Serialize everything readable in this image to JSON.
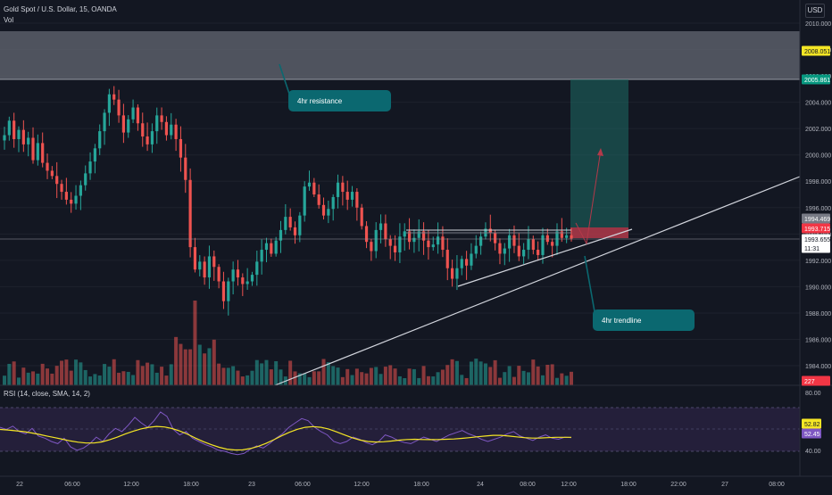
{
  "header": {
    "title": "Gold Spot / U.S. Dollar, 15, OANDA",
    "vol_label": "Vol",
    "rsi_label": "RSI (14, close, SMA, 14, 2)",
    "currency": "USD"
  },
  "annotations": {
    "resistance_label": "4hr resistance",
    "trendline_label": "4hr trendline"
  },
  "price_axis": {
    "ticks": [
      "2010.000",
      "2008.000",
      "2006.000",
      "2004.000",
      "2002.000",
      "2000.000",
      "1998.000",
      "1996.000",
      "1994.000",
      "1992.000",
      "1990.000",
      "1988.000",
      "1986.000",
      "1984.000"
    ],
    "badges": [
      {
        "name": "target-price-badge",
        "text": "2008.051",
        "bg": "#f5e625",
        "fg": "#131722"
      },
      {
        "name": "tp-price-badge",
        "text": "2005.861",
        "bg": "#089981",
        "fg": "#ffffff"
      },
      {
        "name": "entry-price-badge",
        "text": "1994.469",
        "bg": "#787b86",
        "fg": "#ffffff"
      },
      {
        "name": "stop-price-badge",
        "text": "1993.715",
        "bg": "#f23645",
        "fg": "#ffffff"
      },
      {
        "name": "last-price-badge",
        "text": "1993.655",
        "bg": "#ffffff",
        "fg": "#131722"
      },
      {
        "name": "countdown-badge",
        "text": "11:31",
        "bg": "#ffffff",
        "fg": "#131722"
      },
      {
        "name": "volume-badge",
        "text": "227",
        "bg": "#f23645",
        "fg": "#ffffff"
      }
    ]
  },
  "rsi_axis": {
    "ticks": [
      "80.00",
      "40.00"
    ],
    "badges": [
      {
        "name": "rsi-sma-badge",
        "text": "52.82",
        "bg": "#f5e625",
        "fg": "#131722"
      },
      {
        "name": "rsi-value-badge",
        "text": "52.45",
        "bg": "#7e57c2",
        "fg": "#ffffff"
      }
    ]
  },
  "time_axis": {
    "ticks": [
      "22",
      "06:00",
      "12:00",
      "18:00",
      "23",
      "06:00",
      "12:00",
      "18:00",
      "24",
      "08:00",
      "12:00",
      "18:00",
      "22:00",
      "27",
      "08:00"
    ]
  },
  "colors": {
    "background": "#131722",
    "up": "#26a69a",
    "down": "#ef5350",
    "resistance_zone": "#5d606b",
    "target_zone": "#1d6b64",
    "stop_zone": "#b2394a",
    "trendline": "#d1d4dc",
    "callout": "#0b6870",
    "rsi_line": "#7e57c2",
    "rsi_ma": "#f5e625",
    "rsi_band": "#241f3a"
  },
  "chart_data": {
    "type": "candlestick",
    "title": "Gold Spot / U.S. Dollar, 15, OANDA",
    "interval": "15",
    "ylim": [
      1983,
      2011
    ],
    "price_series": [
      2001.5,
      2002.6,
      2001.2,
      2001.9,
      2000.8,
      2001.3,
      1999.6,
      2000.9,
      1999.4,
      1998.8,
      1998.4,
      1997.8,
      1997.2,
      1996.6,
      1996.3,
      1996.9,
      1997.7,
      1998.6,
      1999.5,
      2000.5,
      2001.8,
      2003.2,
      2004.6,
      2004.2,
      2003.0,
      2001.7,
      2002.7,
      2003.6,
      2002.4,
      2001.4,
      2000.8,
      2001.8,
      2003.0,
      2002.5,
      2001.5,
      2002.3,
      2001.2,
      1999.8,
      1998.1,
      1993.0,
      1991.3,
      1991.9,
      1990.7,
      1992.3,
      1991.5,
      1990.4,
      1988.9,
      1990.4,
      1991.3,
      1990.7,
      1990.2,
      1990.4,
      1990.9,
      1991.9,
      1992.8,
      1993.3,
      1992.5,
      1993.5,
      1994.3,
      1995.3,
      1994.5,
      1993.9,
      1995.4,
      1997.6,
      1997.9,
      1997.0,
      1996.2,
      1995.4,
      1995.9,
      1996.8,
      1997.9,
      1997.2,
      1996.6,
      1997.2,
      1996.0,
      1994.6,
      1993.4,
      1992.7,
      1994.3,
      1994.8,
      1993.6,
      1993.1,
      1992.6,
      1993.8,
      1994.2,
      1993.4,
      1993.7,
      1994.2,
      1993.5,
      1993.0,
      1993.2,
      1993.8,
      1992.8,
      1991.4,
      1990.6,
      1991.4,
      1992.1,
      1991.6,
      1992.5,
      1993.1,
      1993.8,
      1994.4,
      1994.1,
      1993.3,
      1992.5,
      1992.9,
      1993.9,
      1993.1,
      1992.3,
      1992.8,
      1993.6,
      1992.8,
      1992.4,
      1993.9,
      1993.4,
      1993.1,
      1994.2,
      1993.7,
      1993.9,
      1993.65
    ],
    "series": [
      {
        "name": "4hr resistance",
        "type": "zone",
        "ymin": 2005.86,
        "ymax": 2010.1
      },
      {
        "name": "4hr trendline",
        "type": "line",
        "start": {
          "x": "23 06:00",
          "y": 1983.1
        },
        "end": {
          "x": "27 08:00",
          "y": 1998.7
        }
      }
    ],
    "position": {
      "entry": 1994.469,
      "stop": 1993.715,
      "target": 2005.861
    },
    "rsi": {
      "label": "RSI (14, close, SMA, 14, 2)",
      "ylim": [
        35,
        85
      ],
      "rsi_values": [
        62,
        60,
        63,
        58,
        56,
        61,
        54,
        52,
        49,
        47,
        52,
        44,
        41,
        43,
        47,
        53,
        49,
        56,
        61,
        58,
        64,
        71,
        66,
        62,
        68,
        76,
        72,
        60,
        55,
        58,
        52,
        49,
        46,
        44,
        41,
        40,
        38,
        37,
        38,
        42,
        45,
        43,
        47,
        52,
        56,
        62,
        66,
        70,
        68,
        62,
        58,
        55,
        49,
        47,
        49,
        53,
        51,
        48,
        46,
        49,
        55,
        53,
        50,
        48,
        47,
        50,
        53,
        51,
        49,
        52,
        55,
        57,
        59,
        56,
        54,
        51,
        49,
        51,
        53,
        56,
        58,
        54,
        52,
        50,
        53,
        55,
        52,
        51,
        53,
        52.45
      ],
      "sma_values": [
        60,
        59.5,
        58.8,
        58,
        56.8,
        55.5,
        54,
        52.5,
        51,
        49.5,
        48.3,
        47.6,
        47.6,
        48.6,
        50.5,
        53,
        55.8,
        58.3,
        60.5,
        62,
        62.8,
        62.3,
        60.8,
        58.5,
        55.5,
        52,
        48.8,
        46,
        43.7,
        42,
        41.2,
        41.3,
        42.5,
        44.6,
        47.3,
        50.6,
        54.2,
        57.5,
        60.2,
        62,
        62.6,
        62,
        60.3,
        57.8,
        55,
        52.4,
        50.3,
        49,
        48.5,
        48.7,
        49.4,
        50.2,
        50.8,
        51,
        50.8,
        50.7,
        50.8,
        51,
        51.3,
        51.8,
        52.5,
        53.3,
        54,
        54.6,
        54.6,
        54,
        53.2,
        52.5,
        52.1,
        52.2,
        52.5,
        52.8,
        52.8,
        52.82
      ]
    },
    "volume_last": 227
  }
}
